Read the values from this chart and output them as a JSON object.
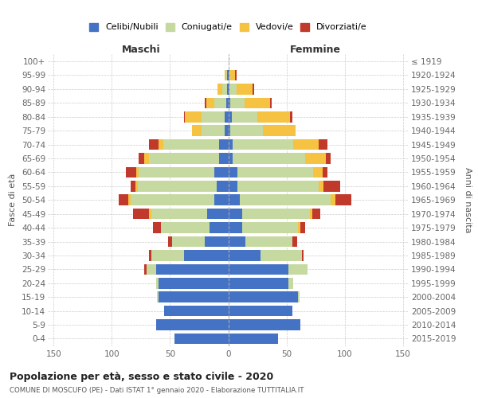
{
  "age_groups_display": [
    "0-4",
    "5-9",
    "10-14",
    "15-19",
    "20-24",
    "25-29",
    "30-34",
    "35-39",
    "40-44",
    "45-49",
    "50-54",
    "55-59",
    "60-64",
    "65-69",
    "70-74",
    "75-79",
    "80-84",
    "85-89",
    "90-94",
    "95-99",
    "100+"
  ],
  "birth_years_display": [
    "2015-2019",
    "2010-2014",
    "2005-2009",
    "2000-2004",
    "1995-1999",
    "1990-1994",
    "1985-1989",
    "1980-1984",
    "1975-1979",
    "1970-1974",
    "1965-1969",
    "1960-1964",
    "1955-1959",
    "1950-1954",
    "1945-1949",
    "1940-1944",
    "1935-1939",
    "1930-1934",
    "1925-1929",
    "1920-1924",
    "≤ 1919"
  ],
  "male_celibi": [
    46,
    62,
    55,
    60,
    60,
    62,
    38,
    20,
    16,
    18,
    12,
    10,
    12,
    8,
    8,
    3,
    3,
    2,
    1,
    1,
    0
  ],
  "male_coniugati": [
    0,
    0,
    0,
    1,
    2,
    8,
    28,
    28,
    42,
    48,
    72,
    68,
    65,
    60,
    48,
    20,
    20,
    10,
    4,
    1,
    0
  ],
  "male_vedovi": [
    0,
    0,
    0,
    0,
    0,
    0,
    0,
    0,
    0,
    2,
    2,
    2,
    2,
    4,
    4,
    8,
    14,
    7,
    4,
    1,
    0
  ],
  "male_divorziati": [
    0,
    0,
    0,
    0,
    0,
    2,
    2,
    4,
    7,
    14,
    8,
    4,
    9,
    5,
    8,
    0,
    1,
    1,
    0,
    0,
    0
  ],
  "fem_nubili": [
    43,
    62,
    55,
    60,
    52,
    52,
    28,
    15,
    12,
    12,
    10,
    8,
    8,
    4,
    4,
    2,
    3,
    2,
    1,
    1,
    0
  ],
  "fem_coniugate": [
    0,
    0,
    0,
    1,
    4,
    16,
    35,
    40,
    48,
    58,
    78,
    70,
    65,
    62,
    52,
    28,
    22,
    12,
    6,
    1,
    0
  ],
  "fem_vedove": [
    0,
    0,
    0,
    0,
    0,
    0,
    0,
    0,
    2,
    2,
    4,
    4,
    8,
    18,
    22,
    28,
    28,
    22,
    14,
    4,
    0
  ],
  "fem_divorziate": [
    0,
    0,
    0,
    0,
    0,
    0,
    2,
    4,
    4,
    7,
    14,
    14,
    4,
    4,
    7,
    0,
    2,
    1,
    1,
    1,
    0
  ],
  "colors": {
    "celibi": "#4472c4",
    "coniugati": "#c5d9a0",
    "vedovi": "#f5c242",
    "divorziati": "#c0392b"
  },
  "xlim": 155,
  "title": "Popolazione per età, sesso e stato civile - 2020",
  "subtitle": "COMUNE DI MOSCUFO (PE) - Dati ISTAT 1° gennaio 2020 - Elaborazione TUTTITALIA.IT",
  "ylabel_left": "Fasce di età",
  "ylabel_right": "Anni di nascita",
  "header_maschi": "Maschi",
  "header_femmine": "Femmine",
  "legend_labels": [
    "Celibi/Nubili",
    "Coniugati/e",
    "Vedovi/e",
    "Divorziati/e"
  ]
}
